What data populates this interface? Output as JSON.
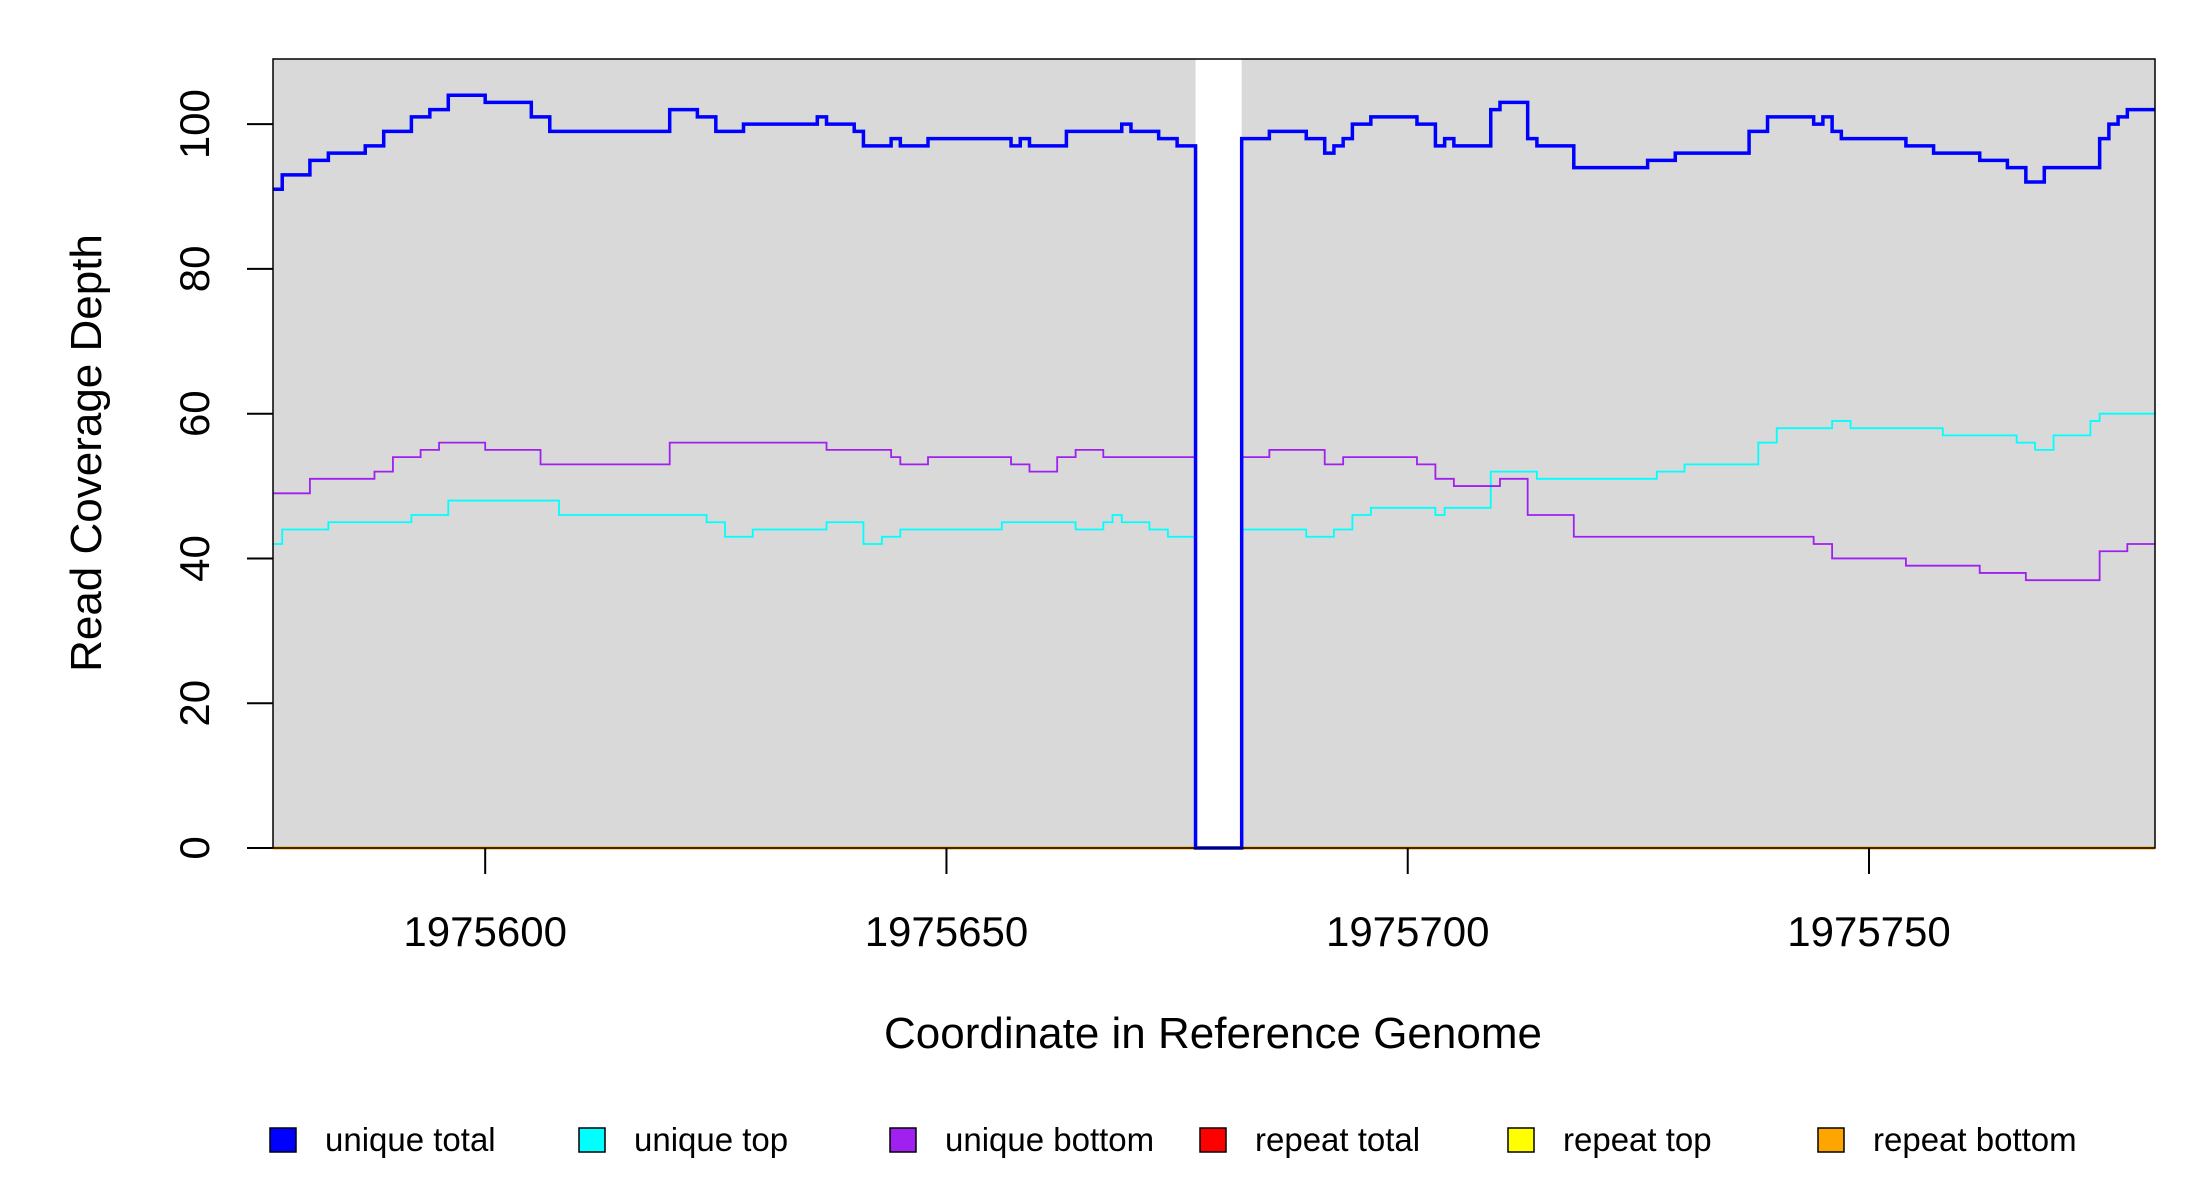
{
  "chart_data": {
    "type": "line",
    "step": true,
    "title": "",
    "xlabel": "Coordinate in Reference Genome",
    "ylabel": "Read Coverage Depth",
    "xlim": [
      1975577,
      1975781
    ],
    "ylim": [
      0,
      109
    ],
    "x_ticks": [
      1975600,
      1975650,
      1975700,
      1975750
    ],
    "y_ticks": [
      0,
      20,
      40,
      60,
      80,
      100
    ],
    "plot_background": "#d9d9d9",
    "gap_region": {
      "start": 1975677,
      "end": 1975682,
      "color": "#ffffff"
    },
    "grid": false,
    "legend_position": "bottom",
    "series": [
      {
        "name": "unique total",
        "color": "#0000ff",
        "x": [
          1975577,
          1975578,
          1975578,
          1975581,
          1975581,
          1975583,
          1975583,
          1975587,
          1975587,
          1975589,
          1975589,
          1975592,
          1975592,
          1975594,
          1975594,
          1975596,
          1975596,
          1975600,
          1975600,
          1975605,
          1975605,
          1975607,
          1975607,
          1975620,
          1975620,
          1975623,
          1975623,
          1975625,
          1975625,
          1975628,
          1975628,
          1975636,
          1975636,
          1975637,
          1975637,
          1975640,
          1975640,
          1975641,
          1975641,
          1975644,
          1975644,
          1975645,
          1975645,
          1975648,
          1975648,
          1975657,
          1975657,
          1975658,
          1975658,
          1975659,
          1975659,
          1975663,
          1975663,
          1975669,
          1975669,
          1975670,
          1975670,
          1975673,
          1975673,
          1975675,
          1975675,
          1975677,
          1975677,
          1975682,
          1975682,
          1975685,
          1975685,
          1975689,
          1975689,
          1975691,
          1975691,
          1975692,
          1975692,
          1975693,
          1975693,
          1975694,
          1975694,
          1975696,
          1975696,
          1975701,
          1975701,
          1975703,
          1975703,
          1975704,
          1975704,
          1975705,
          1975705,
          1975709,
          1975709,
          1975710,
          1975710,
          1975713,
          1975713,
          1975714,
          1975714,
          1975718,
          1975718,
          1975726,
          1975726,
          1975729,
          1975729,
          1975737,
          1975737,
          1975739,
          1975739,
          1975744,
          1975744,
          1975745,
          1975745,
          1975746,
          1975746,
          1975747,
          1975747,
          1975754,
          1975754,
          1975757,
          1975757,
          1975762,
          1975762,
          1975765,
          1975765,
          1975767,
          1975767,
          1975769,
          1975769,
          1975775,
          1975775,
          1975776,
          1975776,
          1975777,
          1975777,
          1975778,
          1975778,
          1975781
        ],
        "y": [
          91,
          91,
          93,
          93,
          95,
          95,
          96,
          96,
          97,
          97,
          99,
          99,
          101,
          101,
          102,
          102,
          104,
          104,
          103,
          103,
          101,
          101,
          99,
          99,
          102,
          102,
          101,
          101,
          99,
          99,
          100,
          100,
          101,
          101,
          100,
          100,
          99,
          99,
          97,
          97,
          98,
          98,
          97,
          97,
          98,
          98,
          97,
          97,
          98,
          98,
          97,
          97,
          99,
          99,
          100,
          100,
          99,
          99,
          98,
          98,
          97,
          97,
          0,
          0,
          98,
          98,
          99,
          99,
          98,
          98,
          96,
          96,
          97,
          97,
          98,
          98,
          100,
          100,
          101,
          101,
          100,
          100,
          97,
          97,
          98,
          98,
          97,
          97,
          102,
          102,
          103,
          103,
          98,
          98,
          97,
          97,
          94,
          94,
          95,
          95,
          96,
          96,
          99,
          99,
          101,
          101,
          100,
          100,
          101,
          101,
          99,
          99,
          98,
          98,
          97,
          97,
          96,
          96,
          95,
          95,
          94,
          94,
          92,
          92,
          94,
          94,
          98,
          98,
          100,
          100,
          101,
          101,
          102,
          102
        ]
      },
      {
        "name": "unique top",
        "color": "#00ffff",
        "x": [
          1975577,
          1975578,
          1975578,
          1975583,
          1975583,
          1975592,
          1975592,
          1975596,
          1975596,
          1975608,
          1975608,
          1975624,
          1975624,
          1975626,
          1975626,
          1975629,
          1975629,
          1975637,
          1975637,
          1975641,
          1975641,
          1975643,
          1975643,
          1975645,
          1975645,
          1975656,
          1975656,
          1975664,
          1975664,
          1975667,
          1975667,
          1975668,
          1975668,
          1975669,
          1975669,
          1975672,
          1975672,
          1975674,
          1975674,
          1975677,
          1975677,
          1975682,
          1975682,
          1975689,
          1975689,
          1975692,
          1975692,
          1975694,
          1975694,
          1975696,
          1975696,
          1975703,
          1975703,
          1975704,
          1975704,
          1975709,
          1975709,
          1975714,
          1975714,
          1975727,
          1975727,
          1975730,
          1975730,
          1975738,
          1975738,
          1975740,
          1975740,
          1975746,
          1975746,
          1975748,
          1975748,
          1975758,
          1975758,
          1975766,
          1975766,
          1975768,
          1975768,
          1975770,
          1975770,
          1975774,
          1975774,
          1975775,
          1975775,
          1975781
        ],
        "y": [
          42,
          42,
          44,
          44,
          45,
          45,
          46,
          46,
          48,
          48,
          46,
          46,
          45,
          45,
          43,
          43,
          44,
          44,
          45,
          45,
          42,
          42,
          43,
          43,
          44,
          44,
          45,
          45,
          44,
          44,
          45,
          45,
          46,
          46,
          45,
          45,
          44,
          44,
          43,
          43,
          0,
          0,
          44,
          44,
          43,
          43,
          44,
          44,
          46,
          46,
          47,
          47,
          46,
          46,
          47,
          47,
          52,
          52,
          51,
          51,
          52,
          52,
          53,
          53,
          56,
          56,
          58,
          58,
          59,
          59,
          58,
          58,
          57,
          57,
          56,
          56,
          55,
          55,
          57,
          57,
          59,
          59,
          60,
          60
        ]
      },
      {
        "name": "unique bottom",
        "color": "#a020f0",
        "x": [
          1975577,
          1975581,
          1975581,
          1975588,
          1975588,
          1975590,
          1975590,
          1975593,
          1975593,
          1975595,
          1975595,
          1975600,
          1975600,
          1975606,
          1975606,
          1975620,
          1975620,
          1975637,
          1975637,
          1975644,
          1975644,
          1975645,
          1975645,
          1975648,
          1975648,
          1975657,
          1975657,
          1975659,
          1975659,
          1975662,
          1975662,
          1975664,
          1975664,
          1975667,
          1975667,
          1975677,
          1975677,
          1975682,
          1975682,
          1975685,
          1975685,
          1975691,
          1975691,
          1975693,
          1975693,
          1975701,
          1975701,
          1975703,
          1975703,
          1975705,
          1975705,
          1975710,
          1975710,
          1975713,
          1975713,
          1975718,
          1975718,
          1975744,
          1975744,
          1975746,
          1975746,
          1975754,
          1975754,
          1975762,
          1975762,
          1975767,
          1975767,
          1975775,
          1975775,
          1975778,
          1975778,
          1975781
        ],
        "y": [
          49,
          49,
          51,
          51,
          52,
          52,
          54,
          54,
          55,
          55,
          56,
          56,
          55,
          55,
          53,
          53,
          56,
          56,
          55,
          55,
          54,
          54,
          53,
          53,
          54,
          54,
          53,
          53,
          52,
          52,
          54,
          54,
          55,
          55,
          54,
          54,
          0,
          0,
          54,
          54,
          55,
          55,
          53,
          53,
          54,
          54,
          53,
          53,
          51,
          51,
          50,
          50,
          51,
          51,
          46,
          46,
          43,
          43,
          42,
          42,
          40,
          40,
          39,
          39,
          38,
          38,
          37,
          37,
          41,
          41,
          42,
          42
        ]
      },
      {
        "name": "repeat total",
        "color": "#ff0000",
        "x": [
          1975577,
          1975781
        ],
        "y": [
          0,
          0
        ]
      },
      {
        "name": "repeat top",
        "color": "#ffff00",
        "x": [
          1975577,
          1975781
        ],
        "y": [
          0,
          0
        ]
      },
      {
        "name": "repeat bottom",
        "color": "#ffa500",
        "x": [
          1975577,
          1975781
        ],
        "y": [
          0,
          0
        ]
      }
    ]
  }
}
